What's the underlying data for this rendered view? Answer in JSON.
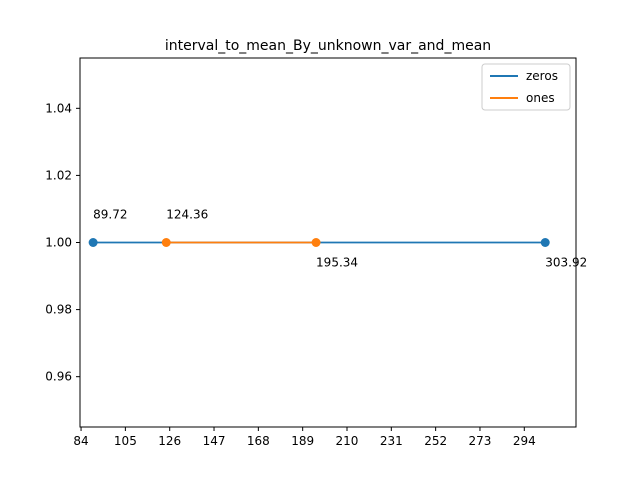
{
  "chart_data": {
    "type": "line",
    "title": "interval_to_mean_By_unknown_var_and_mean",
    "xlabel": "",
    "ylabel": "",
    "xlim": [
      83.5,
      318.5
    ],
    "ylim": [
      0.945,
      1.055
    ],
    "xticks": [
      84,
      105,
      126,
      147,
      168,
      189,
      210,
      231,
      252,
      273,
      294
    ],
    "yticks": [
      0.96,
      0.98,
      1.0,
      1.02,
      1.04
    ],
    "ytick_labels": [
      "0.96",
      "0.98",
      "1.00",
      "1.02",
      "1.04"
    ],
    "grid": false,
    "legend_position": "top-right",
    "series": [
      {
        "name": "zeros",
        "color": "#1f77b4",
        "points": [
          {
            "x": 89.72,
            "y": 1.0,
            "label": "89.72",
            "label_pos": "above"
          },
          {
            "x": 303.92,
            "y": 1.0,
            "label": "303.92",
            "label_pos": "below"
          }
        ]
      },
      {
        "name": "ones",
        "color": "#ff7f0e",
        "points": [
          {
            "x": 124.36,
            "y": 1.0,
            "label": "124.36",
            "label_pos": "above"
          },
          {
            "x": 195.34,
            "y": 1.0,
            "label": "195.34",
            "label_pos": "below"
          }
        ]
      }
    ]
  }
}
